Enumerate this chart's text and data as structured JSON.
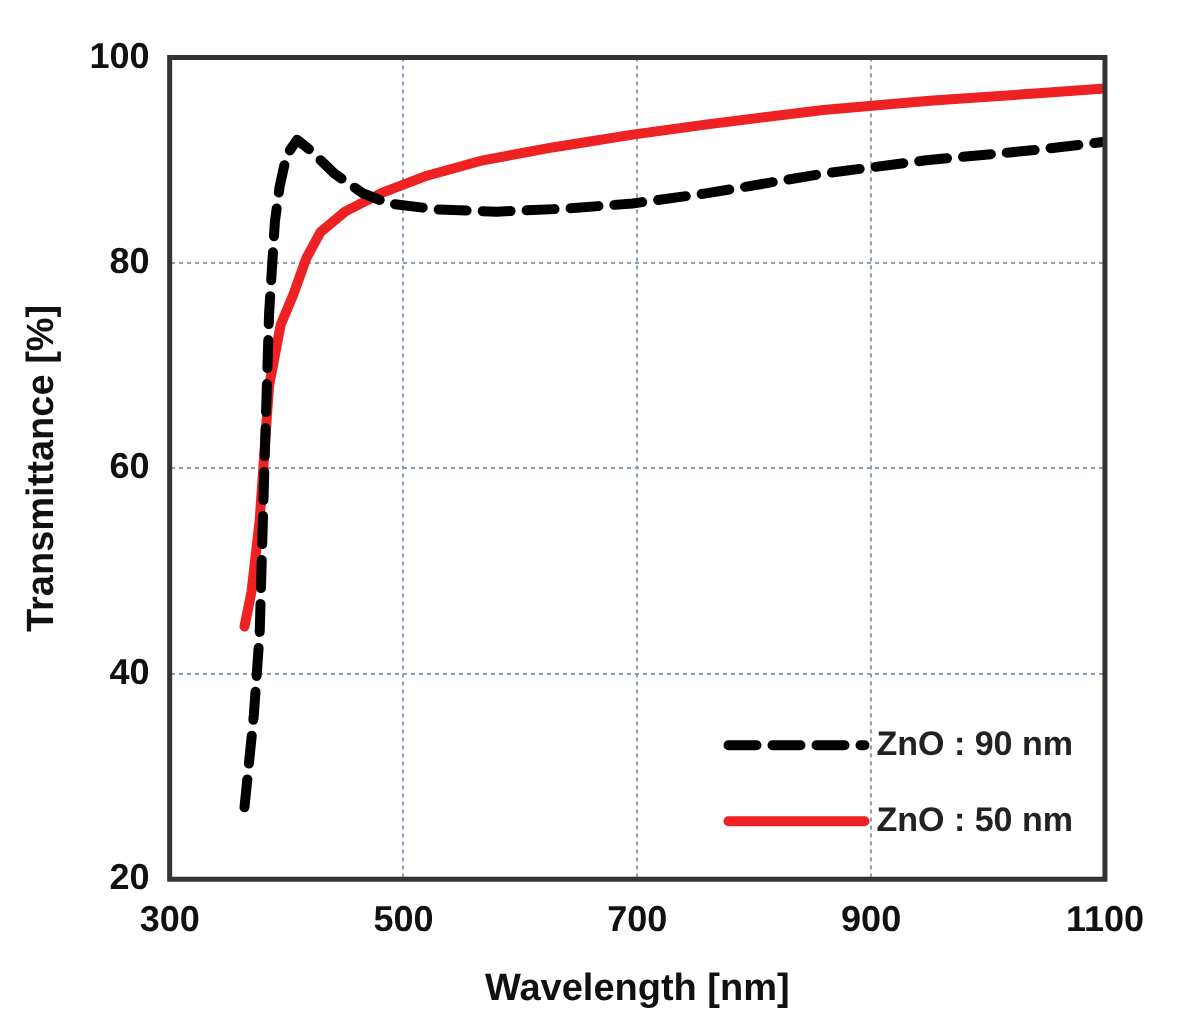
{
  "chart_data": {
    "type": "line",
    "xlabel": "Wavelength [nm]",
    "ylabel": "Transmittance [%]",
    "xlim": [
      300,
      1100
    ],
    "xticks": [
      300,
      500,
      700,
      900,
      1100
    ],
    "ylim": [
      20,
      100
    ],
    "yticks": [
      20,
      40,
      60,
      80,
      100
    ],
    "grid": true,
    "legend": "bottom right",
    "marker": "none",
    "series": [
      {
        "name": "ZnO : 90 nm",
        "color": "#000000",
        "line_style": "dashed",
        "x": [
          364,
          372,
          377,
          381,
          385,
          390,
          394,
          400,
          409,
          420,
          441,
          465,
          487,
          530,
          580,
          640,
          696,
          760,
          859,
          947,
          1040,
          1100
        ],
        "values": [
          27,
          36,
          44,
          60,
          75,
          84,
          87.4,
          90.5,
          92,
          91,
          88.7,
          86.8,
          85.8,
          85.2,
          85,
          85.3,
          85.8,
          86.8,
          88.7,
          90,
          91,
          91.8
        ]
      },
      {
        "name": "ZnO : 50 nm",
        "color": "#ee2222",
        "line_style": "solid",
        "x": [
          364,
          370,
          377,
          385,
          395,
          406,
          417,
          429,
          450,
          481,
          520,
          568,
          630,
          696,
          760,
          859,
          950,
          1040,
          1100
        ],
        "values": [
          44.6,
          48,
          55,
          68,
          74,
          77,
          80.5,
          83,
          85,
          86.8,
          88.5,
          90,
          91.3,
          92.5,
          93.5,
          94.9,
          95.8,
          96.5,
          97
        ]
      }
    ]
  }
}
